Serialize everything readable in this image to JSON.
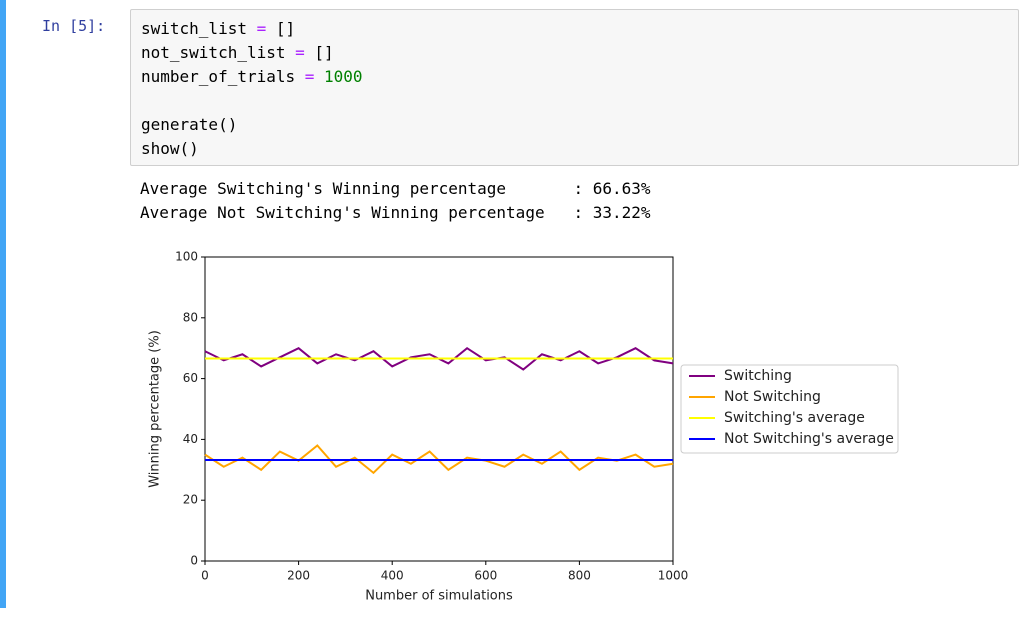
{
  "prompt": "In [5]:",
  "code": [
    [
      {
        "text": "switch_list",
        "color": "#000000"
      },
      {
        "text": " = ",
        "color": "#aa22ff"
      },
      {
        "text": "[]",
        "color": "#000000"
      }
    ],
    [
      {
        "text": "not_switch_list",
        "color": "#000000"
      },
      {
        "text": " = ",
        "color": "#aa22ff"
      },
      {
        "text": "[]",
        "color": "#000000"
      }
    ],
    [
      {
        "text": "number_of_trials",
        "color": "#000000"
      },
      {
        "text": " = ",
        "color": "#aa22ff"
      },
      {
        "text": "1000",
        "color": "#008000"
      }
    ],
    [],
    [
      {
        "text": "generate()",
        "color": "#000000"
      }
    ],
    [
      {
        "text": "show()",
        "color": "#000000"
      }
    ]
  ],
  "output": [
    "Average Switching's Winning percentage       : 66.63%",
    "Average Not Switching's Winning percentage   : 33.22%"
  ],
  "chart_data": {
    "type": "line",
    "x_label": "Number of simulations",
    "y_label": "Winning percentage (%)",
    "xlim": [
      0,
      1000
    ],
    "ylim": [
      0,
      100
    ],
    "xticks": [
      0,
      200,
      400,
      600,
      800,
      1000
    ],
    "yticks": [
      0,
      20,
      40,
      60,
      80,
      100
    ],
    "legend": "right",
    "series": [
      {
        "name": "Switching",
        "color": "#800080",
        "x": [
          0,
          40,
          80,
          120,
          160,
          200,
          240,
          280,
          320,
          360,
          400,
          440,
          480,
          520,
          560,
          600,
          640,
          680,
          720,
          760,
          800,
          840,
          880,
          920,
          960,
          1000
        ],
        "values": [
          69,
          66,
          68,
          64,
          67,
          70,
          65,
          68,
          66,
          69,
          64,
          67,
          68,
          65,
          70,
          66,
          67,
          63,
          68,
          66,
          69,
          65,
          67,
          70,
          66,
          65
        ]
      },
      {
        "name": "Not Switching",
        "color": "#ffa500",
        "x": [
          0,
          40,
          80,
          120,
          160,
          200,
          240,
          280,
          320,
          360,
          400,
          440,
          480,
          520,
          560,
          600,
          640,
          680,
          720,
          760,
          800,
          840,
          880,
          920,
          960,
          1000
        ],
        "values": [
          35,
          31,
          34,
          30,
          36,
          33,
          38,
          31,
          34,
          29,
          35,
          32,
          36,
          30,
          34,
          33,
          31,
          35,
          32,
          36,
          30,
          34,
          33,
          35,
          31,
          32
        ]
      },
      {
        "name": "Switching's average",
        "color": "#ffff00",
        "x": [
          0,
          1000
        ],
        "values": [
          66.63,
          66.63
        ]
      },
      {
        "name": "Not Switching's average",
        "color": "#0000ff",
        "x": [
          0,
          1000
        ],
        "values": [
          33.22,
          33.22
        ]
      }
    ]
  }
}
